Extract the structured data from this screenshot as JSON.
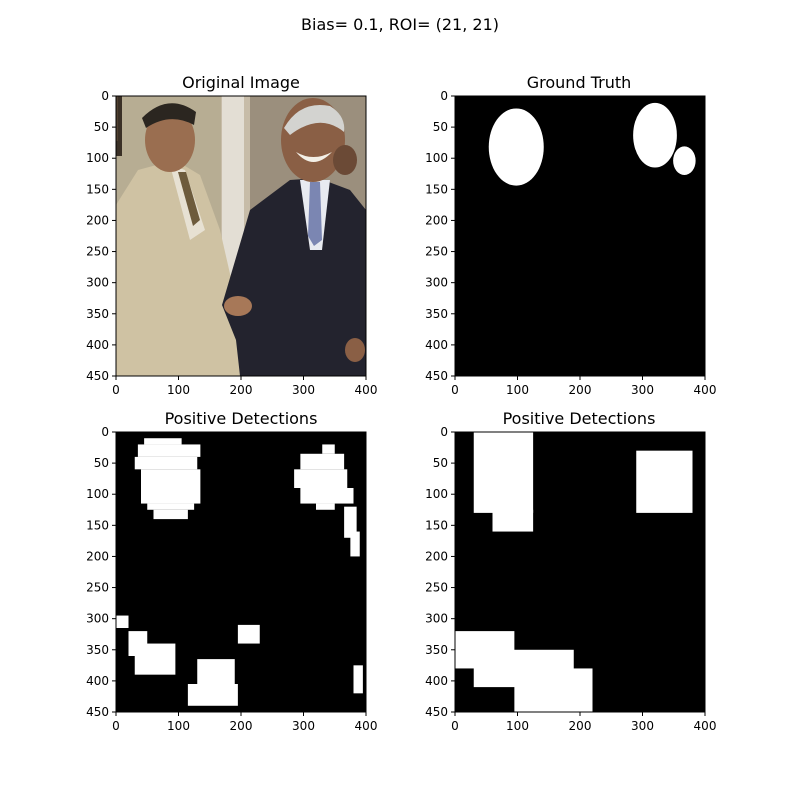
{
  "figure": {
    "suptitle": "Bias= 0.1, ROI= (21, 21)"
  },
  "colors": {
    "background": "#000000",
    "foreground": "#ffffff",
    "axes": "#000000"
  },
  "chart_data": [
    {
      "type": "image",
      "title": "Original Image",
      "content": "photograph of two men shaking hands",
      "xlim": [
        0,
        400
      ],
      "ylim": [
        450,
        0
      ],
      "xticks": [
        0,
        100,
        200,
        300,
        400
      ],
      "yticks": [
        0,
        50,
        100,
        150,
        200,
        250,
        300,
        350,
        400,
        450
      ]
    },
    {
      "type": "heatmap",
      "title": "Ground Truth",
      "xlim": [
        0,
        400
      ],
      "ylim": [
        450,
        0
      ],
      "xticks": [
        0,
        100,
        200,
        300,
        400
      ],
      "yticks": [
        0,
        50,
        100,
        150,
        200,
        250,
        300,
        350,
        400,
        450
      ],
      "ellipses": [
        {
          "cx": 98,
          "cy": 82,
          "rx": 44,
          "ry": 62
        },
        {
          "cx": 320,
          "cy": 63,
          "rx": 35,
          "ry": 52
        },
        {
          "cx": 367,
          "cy": 104,
          "rx": 18,
          "ry": 23
        }
      ]
    },
    {
      "type": "heatmap",
      "title": "Positive Detections",
      "xlim": [
        0,
        400
      ],
      "ylim": [
        450,
        0
      ],
      "xticks": [
        0,
        100,
        200,
        300,
        400
      ],
      "yticks": [
        0,
        50,
        100,
        150,
        200,
        250,
        300,
        350,
        400,
        450
      ],
      "regions": [
        {
          "x0": 45,
          "x1": 105,
          "y0": 10,
          "y1": 20
        },
        {
          "x0": 35,
          "x1": 135,
          "y0": 20,
          "y1": 40
        },
        {
          "x0": 30,
          "x1": 130,
          "y0": 40,
          "y1": 60
        },
        {
          "x0": 40,
          "x1": 135,
          "y0": 60,
          "y1": 115
        },
        {
          "x0": 50,
          "x1": 125,
          "y0": 115,
          "y1": 125
        },
        {
          "x0": 60,
          "x1": 115,
          "y0": 125,
          "y1": 140
        },
        {
          "x0": 330,
          "x1": 350,
          "y0": 20,
          "y1": 35
        },
        {
          "x0": 295,
          "x1": 365,
          "y0": 35,
          "y1": 60
        },
        {
          "x0": 285,
          "x1": 370,
          "y0": 60,
          "y1": 90
        },
        {
          "x0": 295,
          "x1": 380,
          "y0": 90,
          "y1": 115
        },
        {
          "x0": 320,
          "x1": 350,
          "y0": 115,
          "y1": 125
        },
        {
          "x0": 365,
          "x1": 385,
          "y0": 120,
          "y1": 170
        },
        {
          "x0": 375,
          "x1": 390,
          "y0": 160,
          "y1": 200
        },
        {
          "x0": 0,
          "x1": 20,
          "y0": 295,
          "y1": 315
        },
        {
          "x0": 20,
          "x1": 50,
          "y0": 320,
          "y1": 360
        },
        {
          "x0": 30,
          "x1": 95,
          "y0": 340,
          "y1": 390
        },
        {
          "x0": 195,
          "x1": 230,
          "y0": 310,
          "y1": 340
        },
        {
          "x0": 130,
          "x1": 190,
          "y0": 365,
          "y1": 410
        },
        {
          "x0": 115,
          "x1": 195,
          "y0": 405,
          "y1": 440
        },
        {
          "x0": 380,
          "x1": 395,
          "y0": 375,
          "y1": 420
        }
      ]
    },
    {
      "type": "heatmap",
      "title": "Positive Detections",
      "xlim": [
        0,
        400
      ],
      "ylim": [
        450,
        0
      ],
      "xticks": [
        0,
        100,
        200,
        300,
        400
      ],
      "yticks": [
        0,
        50,
        100,
        150,
        200,
        250,
        300,
        350,
        400,
        450
      ],
      "regions": [
        {
          "x0": 30,
          "x1": 125,
          "y0": 0,
          "y1": 130
        },
        {
          "x0": 60,
          "x1": 125,
          "y0": 125,
          "y1": 160
        },
        {
          "x0": 290,
          "x1": 380,
          "y0": 30,
          "y1": 130
        },
        {
          "x0": 0,
          "x1": 95,
          "y0": 320,
          "y1": 380
        },
        {
          "x0": 30,
          "x1": 190,
          "y0": 350,
          "y1": 410
        },
        {
          "x0": 95,
          "x1": 220,
          "y0": 380,
          "y1": 450
        }
      ]
    }
  ]
}
